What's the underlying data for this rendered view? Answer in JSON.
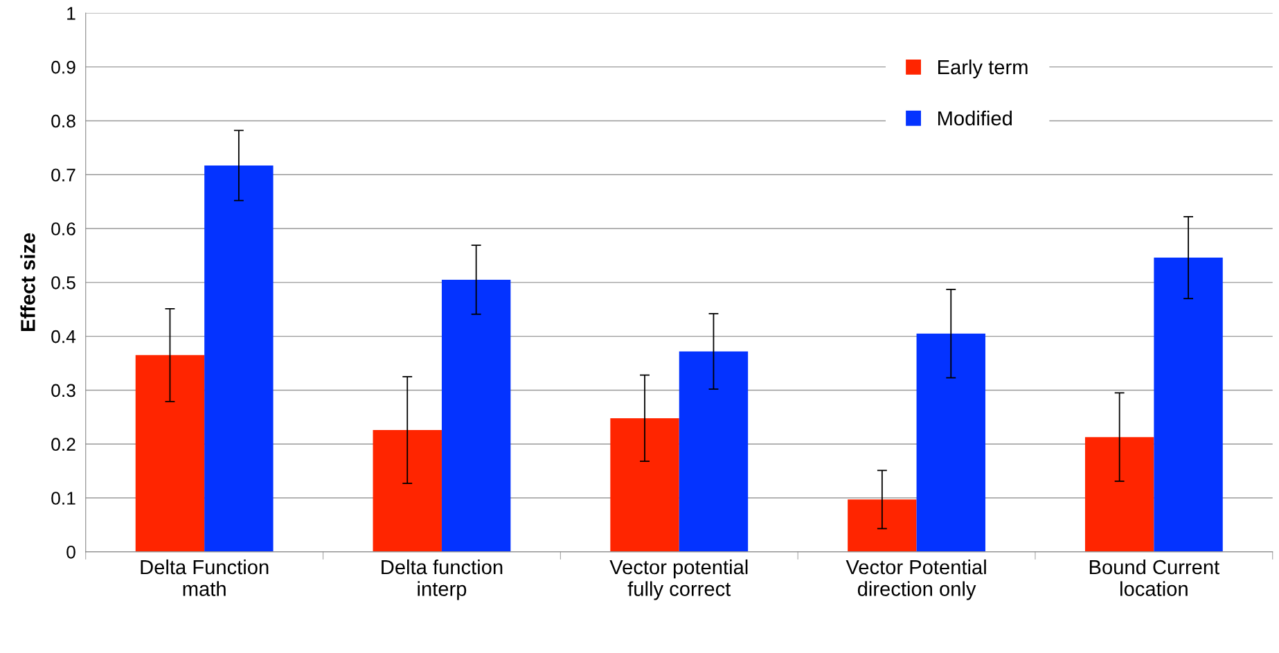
{
  "chart_data": {
    "type": "bar",
    "ylabel": "Effect size",
    "categories": [
      "Delta Function\nmath",
      "Delta function\ninterp",
      "Vector potential\nfully correct",
      "Vector Potential\ndirection only",
      "Bound Current\nlocation"
    ],
    "series": [
      {
        "name": "Early term",
        "color": "#ff2500",
        "values": [
          0.365,
          0.226,
          0.248,
          0.097,
          0.213
        ],
        "errors": [
          0.086,
          0.099,
          0.08,
          0.054,
          0.082
        ]
      },
      {
        "name": "Modified",
        "color": "#0433ff",
        "values": [
          0.717,
          0.505,
          0.372,
          0.405,
          0.546
        ],
        "errors": [
          0.065,
          0.064,
          0.07,
          0.082,
          0.076
        ]
      }
    ],
    "ylim": [
      0,
      1
    ],
    "yticks": [
      0,
      0.1,
      0.2,
      0.3,
      0.4,
      0.5,
      0.6,
      0.7,
      0.8,
      0.9,
      1
    ],
    "grid": "y",
    "legend": "top right"
  }
}
